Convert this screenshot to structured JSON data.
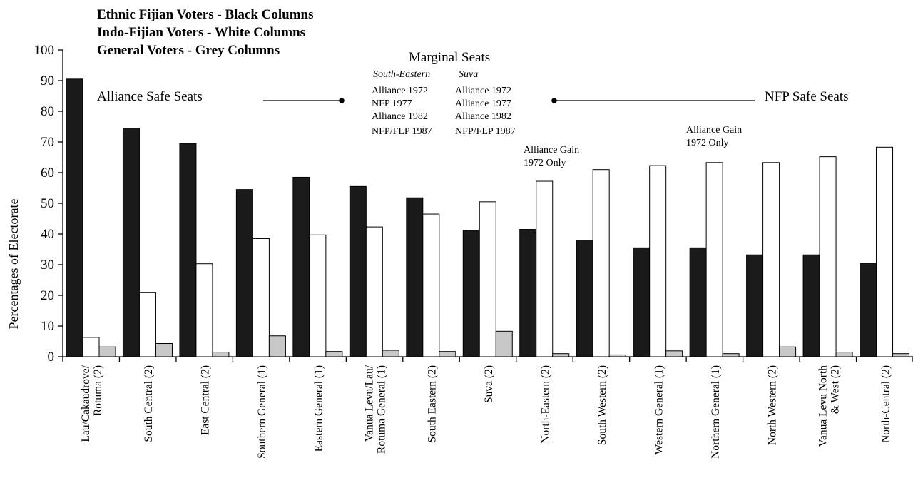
{
  "chart_data": {
    "type": "bar",
    "legend": [
      "Ethnic Fijian Voters - Black Columns",
      "Indo-Fijian Voters - White Columns",
      "General Voters - Grey Columns"
    ],
    "ylabel": "Percentages of Electorate",
    "ylim": [
      0,
      100
    ],
    "yticks": [
      "0",
      "10",
      "20",
      "30",
      "40",
      "50",
      "60",
      "70",
      "80",
      "90",
      "100"
    ],
    "categories": [
      [
        "Lau/Cakaudrove/",
        "Rotuma (2)"
      ],
      [
        "South Central (2)"
      ],
      [
        "East Central (2)"
      ],
      [
        "Southern General (1)"
      ],
      [
        "Eastern General (1)"
      ],
      [
        "Vanua Levu/Lau/",
        "Rotuma General (1)"
      ],
      [
        "South Eastern (2)"
      ],
      [
        "Suva (2)"
      ],
      [
        "North-Eastern (2)"
      ],
      [
        "South Western (2)"
      ],
      [
        "Western General (1)"
      ],
      [
        "Northern General (1)"
      ],
      [
        "North Western (2)"
      ],
      [
        "Vanua Levu North",
        "& West (2)"
      ],
      [
        "North-Central (2)"
      ]
    ],
    "series": [
      {
        "color": "#1a1a1a",
        "values": [
          90.5,
          74.5,
          69.5,
          54.5,
          58.5,
          55.5,
          51.8,
          41.2,
          41.5,
          38,
          35.5,
          35.5,
          33.2,
          33.2,
          30.5
        ]
      },
      {
        "color": "#ffffff",
        "values": [
          6.3,
          21,
          30.3,
          38.5,
          39.7,
          42.3,
          46.5,
          50.5,
          57.2,
          61,
          62.3,
          63.3,
          63.3,
          65.2,
          68.3
        ]
      },
      {
        "color": "#c8c8c8",
        "values": [
          3.2,
          4.3,
          1.5,
          6.8,
          1.7,
          2.1,
          1.7,
          8.3,
          1.0,
          0.6,
          1.9,
          1.0,
          3.2,
          1.5,
          1.0
        ]
      }
    ],
    "annotations": {
      "alliance_safe": "Alliance Safe Seats",
      "marginal": "Marginal Seats",
      "nfp_safe": "NFP Safe Seats",
      "se_head": "South-Eastern",
      "se_lines": [
        "Alliance 1972",
        "NFP 1977",
        "Alliance 1982",
        "NFP/FLP 1987"
      ],
      "suva_head": "Suva",
      "suva_lines": [
        "Alliance 1972",
        "Alliance 1977",
        "Alliance 1982",
        "NFP/FLP 1987"
      ],
      "gain1": [
        "Alliance Gain",
        "1972 Only"
      ],
      "gain2": [
        "Alliance Gain",
        "1972 Only"
      ]
    }
  }
}
